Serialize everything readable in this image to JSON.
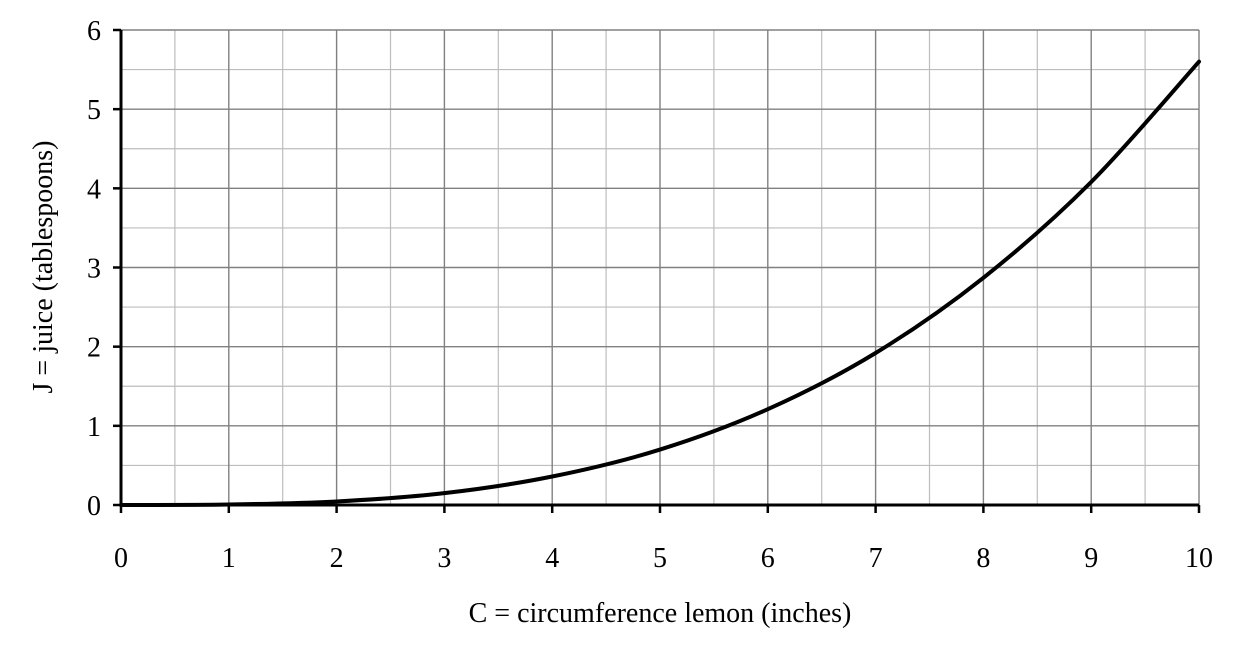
{
  "chart_data": {
    "type": "line",
    "title": "",
    "xlabel": "C = circumference lemon (inches)",
    "ylabel": "J = juice (tablespoons)",
    "xlim": [
      0,
      10
    ],
    "ylim": [
      0,
      6
    ],
    "x_ticks": [
      "0",
      "1",
      "2",
      "3",
      "4",
      "5",
      "6",
      "7",
      "8",
      "9",
      "10"
    ],
    "y_ticks": [
      "0",
      "1",
      "2",
      "3",
      "4",
      "5",
      "6"
    ],
    "grid": true,
    "grid_minor": true,
    "legend": "none",
    "series": [
      {
        "x": [
          0,
          1,
          2,
          3,
          4,
          5,
          6,
          7,
          8,
          9,
          10
        ],
        "y": [
          0,
          0.006,
          0.045,
          0.15,
          0.36,
          0.7,
          1.21,
          1.92,
          2.87,
          4.08,
          5.6
        ],
        "color": "#000000"
      }
    ]
  }
}
